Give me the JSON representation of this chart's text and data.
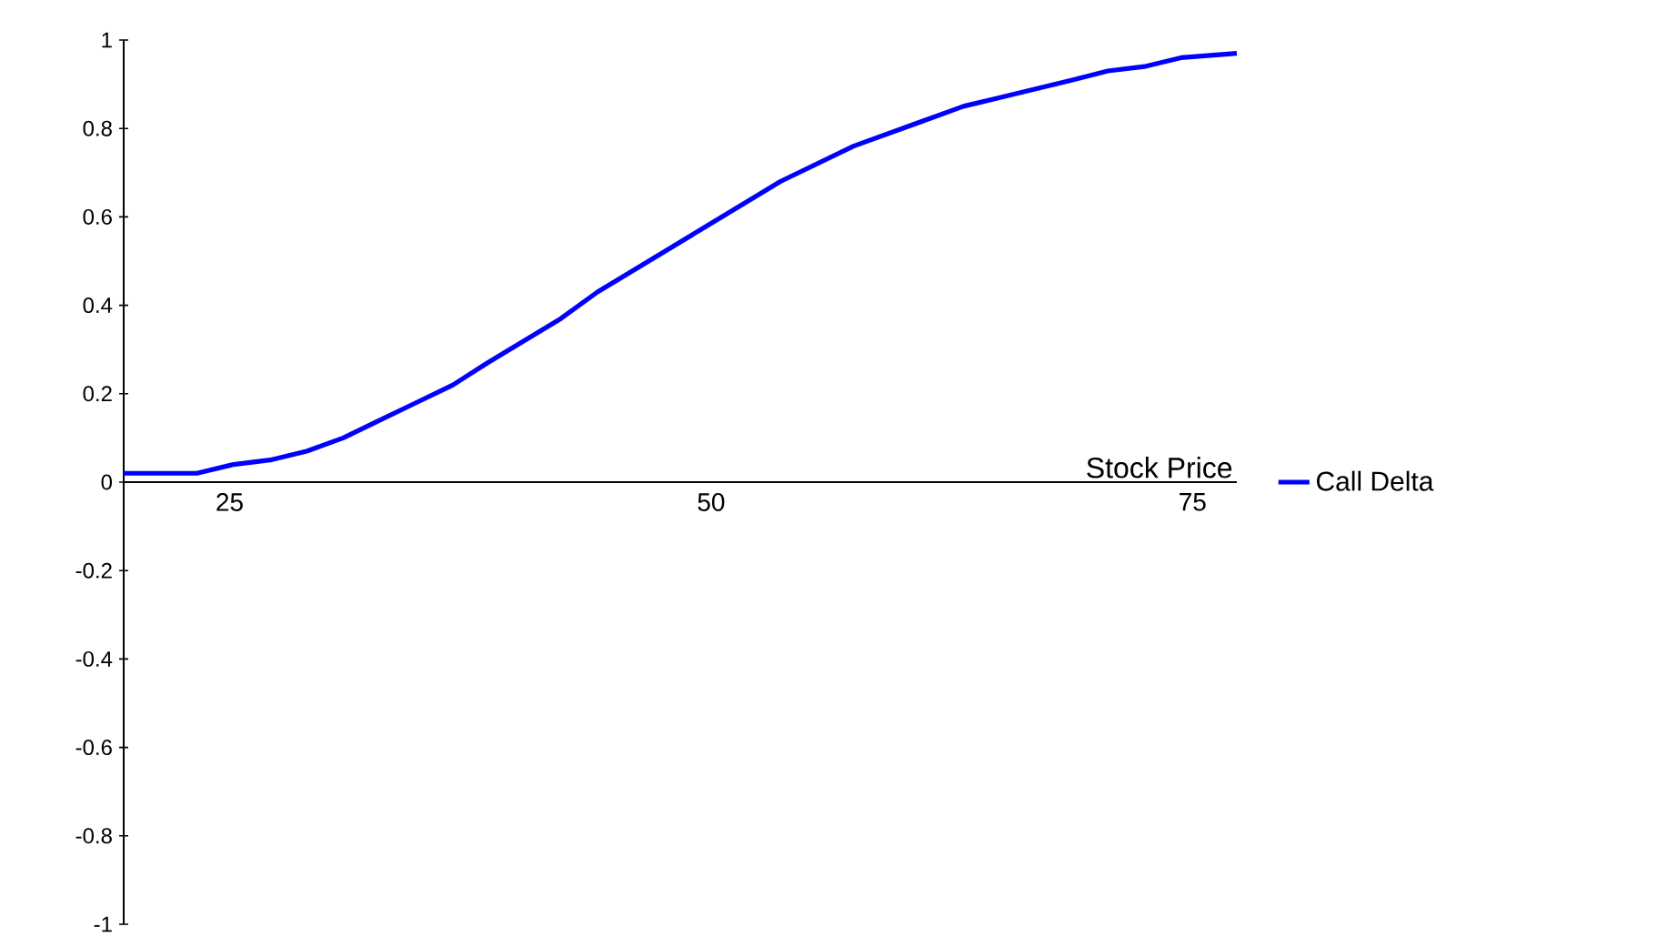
{
  "chart_data": {
    "type": "line",
    "xlabel": "Stock Price",
    "x": [
      19.5,
      23.3,
      25.2,
      27.1,
      29,
      30.9,
      32.8,
      34.7,
      36.6,
      38.4,
      40.3,
      42.2,
      44.1,
      46,
      47.9,
      49.8,
      51.7,
      53.6,
      55.5,
      57.4,
      59.3,
      61.2,
      63.1,
      65,
      66.9,
      68.8,
      70.6,
      72.5,
      74.4,
      77.3
    ],
    "series": [
      {
        "name": "Call Delta",
        "color": "#0000ff",
        "values": [
          0.02,
          0.02,
          0.04,
          0.05,
          0.07,
          0.1,
          0.14,
          0.18,
          0.22,
          0.27,
          0.32,
          0.37,
          0.43,
          0.48,
          0.53,
          0.58,
          0.63,
          0.68,
          0.72,
          0.76,
          0.79,
          0.82,
          0.85,
          0.87,
          0.89,
          0.91,
          0.93,
          0.94,
          0.96,
          0.97
        ]
      }
    ],
    "xlim": [
      19.5,
      77.3
    ],
    "ylim": [
      -1,
      1
    ],
    "xticks": [
      25,
      50,
      75
    ],
    "yticks": [
      -1,
      -0.8,
      -0.6,
      -0.4,
      -0.2,
      0,
      0.2,
      0.4,
      0.6,
      0.8,
      1
    ],
    "legend": "right",
    "marker": "none",
    "line_style": "solid"
  }
}
